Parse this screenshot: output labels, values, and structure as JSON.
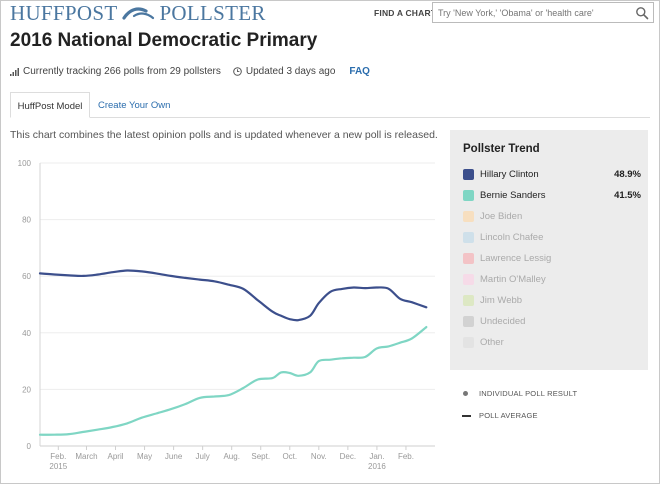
{
  "header": {
    "logo_left": "HUFFPOST",
    "logo_right": "POLLSTER",
    "find_label": "FIND A CHART",
    "search_placeholder": "Try 'New York,' 'Obama' or 'health care'"
  },
  "page": {
    "title": "2016 National Democratic Primary",
    "tracking_text": "Currently tracking 266 polls from 29 pollsters",
    "updated_text": "Updated 3 days ago",
    "faq_label": "FAQ",
    "description": "This chart combines the latest opinion polls and is updated whenever a new poll is released."
  },
  "tabs": [
    {
      "label": "HuffPost Model"
    },
    {
      "label": "Create Your Own"
    }
  ],
  "panel": {
    "title": "Pollster Trend",
    "items": [
      {
        "name": "Hillary Clinton",
        "value": "48.9%",
        "color": "#3c4f8c",
        "active": true
      },
      {
        "name": "Bernie Sanders",
        "value": "41.5%",
        "color": "#7fd6c4",
        "active": true
      },
      {
        "name": "Joe Biden",
        "value": "",
        "color": "#f7dfc0",
        "active": false
      },
      {
        "name": "Lincoln Chafee",
        "value": "",
        "color": "#cfe0ea",
        "active": false
      },
      {
        "name": "Lawrence Lessig",
        "value": "",
        "color": "#f3c3c6",
        "active": false
      },
      {
        "name": "Martin O'Malley",
        "value": "",
        "color": "#f6dbe8",
        "active": false
      },
      {
        "name": "Jim Webb",
        "value": "",
        "color": "#dde8c4",
        "active": false
      },
      {
        "name": "Undecided",
        "value": "",
        "color": "#d2d2d2",
        "active": false
      },
      {
        "name": "Other",
        "value": "",
        "color": "#e3e3e3",
        "active": false
      }
    ]
  },
  "key": {
    "individual": "INDIVIDUAL POLL RESULT",
    "average": "POLL AVERAGE"
  },
  "chart_data": {
    "type": "line",
    "title": "2016 National Democratic Primary",
    "ylim": [
      0,
      100
    ],
    "yticks": [
      0,
      20,
      40,
      60,
      80,
      100
    ],
    "xlim": [
      0,
      13.6
    ],
    "xticks": [
      {
        "x": 0.63,
        "label": "Feb.",
        "sub": "2015"
      },
      {
        "x": 1.6,
        "label": "March",
        "sub": ""
      },
      {
        "x": 2.6,
        "label": "April",
        "sub": ""
      },
      {
        "x": 3.6,
        "label": "May",
        "sub": ""
      },
      {
        "x": 4.6,
        "label": "June",
        "sub": ""
      },
      {
        "x": 5.6,
        "label": "July",
        "sub": ""
      },
      {
        "x": 6.6,
        "label": "Aug.",
        "sub": ""
      },
      {
        "x": 7.6,
        "label": "Sept.",
        "sub": ""
      },
      {
        "x": 8.6,
        "label": "Oct.",
        "sub": ""
      },
      {
        "x": 9.6,
        "label": "Nov.",
        "sub": ""
      },
      {
        "x": 10.6,
        "label": "Dec.",
        "sub": ""
      },
      {
        "x": 11.6,
        "label": "Jan.",
        "sub": "2016"
      },
      {
        "x": 12.6,
        "label": "Feb.",
        "sub": ""
      }
    ],
    "series": [
      {
        "name": "Hillary Clinton",
        "color": "#3c4f8c",
        "x": [
          0,
          0.5,
          1,
          1.5,
          2,
          2.5,
          3,
          3.5,
          4,
          4.5,
          5,
          5.5,
          6,
          6.5,
          7,
          7.5,
          8,
          8.3,
          8.6,
          8.9,
          9.3,
          9.6,
          10,
          10.4,
          10.8,
          11.2,
          11.6,
          12,
          12.4,
          12.8,
          13.3
        ],
        "values": [
          61,
          60.6,
          60.3,
          60.1,
          60.6,
          61.4,
          62,
          61.7,
          61,
          60.1,
          59.4,
          58.8,
          58.2,
          57,
          55.5,
          51.5,
          47.5,
          46,
          44.8,
          44.5,
          46,
          50.5,
          54.5,
          55.5,
          56,
          55.8,
          56,
          55.6,
          52,
          50.8,
          49
        ]
      },
      {
        "name": "Bernie Sanders",
        "color": "#7fd6c4",
        "x": [
          0,
          0.5,
          1,
          1.5,
          2,
          2.5,
          3,
          3.5,
          4,
          4.5,
          5,
          5.5,
          6,
          6.5,
          7,
          7.5,
          8,
          8.3,
          8.6,
          8.9,
          9.3,
          9.6,
          10,
          10.4,
          10.8,
          11.2,
          11.6,
          12,
          12.4,
          12.8,
          13.3
        ],
        "values": [
          4,
          4,
          4.2,
          5,
          5.8,
          6.7,
          8,
          10,
          11.5,
          13,
          14.8,
          17,
          17.5,
          18,
          20.5,
          23.5,
          24,
          26,
          25.8,
          24.8,
          26,
          30,
          30.5,
          31,
          31.2,
          31.5,
          34.5,
          35.2,
          36.5,
          38,
          42
        ]
      }
    ]
  }
}
